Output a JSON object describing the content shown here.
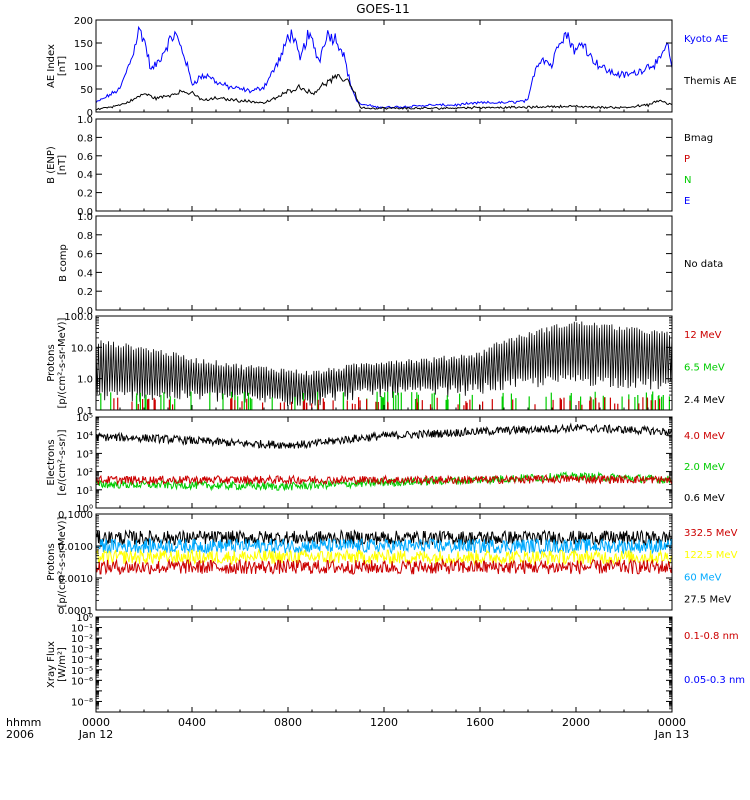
{
  "title": "GOES-11",
  "bottom_labels": {
    "hhmm": "hhmm",
    "year": "2006"
  },
  "x_axis": {
    "ticks": [
      "0000",
      "0400",
      "0800",
      "1200",
      "1600",
      "2000",
      "0000"
    ],
    "tick_hours": [
      0,
      4,
      8,
      12,
      16,
      20,
      24
    ],
    "date_labels": [
      {
        "hour": 0,
        "text": "Jan 12"
      },
      {
        "hour": 24,
        "text": "Jan 13"
      }
    ],
    "range_hours": [
      0,
      24
    ]
  },
  "chart_data": [
    {
      "type": "line",
      "id": "ae",
      "ylabel": [
        "AE Index",
        "[nT]"
      ],
      "scale": "linear",
      "ylim": [
        0,
        200
      ],
      "yticks": [
        0,
        50,
        100,
        150,
        200
      ],
      "ytick_labels": [
        "0",
        "50",
        "100",
        "150",
        "200"
      ],
      "legend": [
        {
          "text": "Kyoto AE",
          "color": "#0000ff"
        },
        {
          "text": "Themis AE",
          "color": "#000000"
        }
      ],
      "series": [
        {
          "name": "Kyoto AE",
          "color": "#0000ff",
          "x": [
            0,
            0.5,
            1,
            1.5,
            1.8,
            2,
            2.3,
            2.6,
            3,
            3.3,
            3.7,
            4,
            4.3,
            4.7,
            5,
            5.5,
            6,
            6.5,
            7,
            7.5,
            7.8,
            8,
            8.2,
            8.5,
            8.8,
            9,
            9.3,
            9.6,
            10,
            10.3,
            10.6,
            10.9,
            11.2,
            11.6,
            12,
            13,
            14,
            15,
            16,
            17,
            18,
            18.3,
            18.6,
            19,
            19.3,
            19.6,
            20,
            20.3,
            20.6,
            21,
            21.5,
            22,
            22.5,
            23,
            23.5,
            23.8,
            24
          ],
          "y": [
            20,
            35,
            50,
            120,
            180,
            160,
            90,
            110,
            150,
            170,
            120,
            60,
            75,
            80,
            65,
            55,
            50,
            45,
            55,
            100,
            130,
            165,
            170,
            110,
            165,
            155,
            110,
            170,
            160,
            130,
            60,
            20,
            15,
            12,
            10,
            12,
            15,
            15,
            20,
            20,
            25,
            95,
            120,
            100,
            160,
            170,
            130,
            155,
            120,
            100,
            85,
            80,
            85,
            100,
            110,
            150,
            90
          ]
        },
        {
          "name": "Themis AE",
          "color": "#000000",
          "x": [
            0,
            1,
            1.5,
            2,
            2.5,
            3,
            3.5,
            4,
            4.5,
            5,
            6,
            7,
            7.5,
            8,
            8.5,
            9,
            9.5,
            10,
            10.5,
            10.8,
            11,
            11.5,
            12,
            14,
            16,
            18,
            19,
            20,
            21,
            22,
            23,
            23.5,
            24
          ],
          "y": [
            5,
            15,
            25,
            40,
            30,
            35,
            45,
            40,
            25,
            30,
            25,
            20,
            30,
            45,
            55,
            40,
            60,
            75,
            70,
            40,
            10,
            8,
            8,
            8,
            10,
            10,
            12,
            12,
            10,
            10,
            15,
            25,
            15
          ]
        }
      ]
    },
    {
      "type": "line",
      "id": "bfield",
      "ylabel": [
        "B (ENP)",
        "[nT]"
      ],
      "scale": "linear",
      "ylim": [
        0,
        1
      ],
      "yticks": [
        0,
        0.2,
        0.4,
        0.6,
        0.8,
        1.0
      ],
      "ytick_labels": [
        "0.0",
        "0.2",
        "0.4",
        "0.6",
        "0.8",
        "1.0"
      ],
      "legend": [
        {
          "text": "Bmag",
          "color": "#000000"
        },
        {
          "text": "P",
          "color": "#cc0000"
        },
        {
          "text": "N",
          "color": "#00cc00"
        },
        {
          "text": "E",
          "color": "#0000ff"
        }
      ],
      "series": []
    },
    {
      "type": "line",
      "id": "bcomp",
      "ylabel": [
        "B comp"
      ],
      "scale": "linear",
      "ylim": [
        0,
        1
      ],
      "yticks": [
        0,
        0.2,
        0.4,
        0.6,
        0.8,
        1.0
      ],
      "ytick_labels": [
        "0.0",
        "0.2",
        "0.4",
        "0.6",
        "0.8",
        "1.0"
      ],
      "legend": [
        {
          "text": "No data",
          "color": "#000000"
        }
      ],
      "series": []
    },
    {
      "type": "line",
      "id": "protons_low",
      "ylabel": [
        "Protons",
        "[p/(cm²-s-sr-MeV)]"
      ],
      "scale": "log",
      "ylim": [
        0.1,
        100
      ],
      "yticks": [
        0.1,
        1,
        10,
        100
      ],
      "ytick_labels": [
        "0.1",
        "1.0",
        "10.0",
        "100.0"
      ],
      "legend": [
        {
          "text": "12 MeV",
          "color": "#cc0000"
        },
        {
          "text": "6.5 MeV",
          "color": "#00cc00"
        },
        {
          "text": "2.4 MeV",
          "color": "#000000"
        }
      ],
      "series": [
        {
          "name": "2.4 MeV",
          "color": "#000000",
          "style": "spiky",
          "x": [
            0,
            2,
            4,
            6,
            8,
            9,
            10,
            12,
            14,
            16,
            18,
            20,
            22,
            24
          ],
          "y": [
            15,
            9,
            4,
            2.5,
            1.8,
            1.5,
            2,
            3.5,
            4,
            6,
            25,
            60,
            40,
            25
          ],
          "ymin": [
            0.3,
            0.3,
            0.3,
            0.25,
            0.2,
            0.2,
            0.3,
            0.4,
            0.4,
            0.5,
            0.8,
            1,
            0.8,
            0.6
          ]
        },
        {
          "name": "6.5 MeV",
          "color": "#00cc00",
          "style": "sparse",
          "x": [
            0,
            24
          ],
          "y": [
            0.15,
            0.15
          ],
          "ymax": [
            0.3,
            0.3
          ]
        },
        {
          "name": "12 MeV",
          "color": "#cc0000",
          "style": "sparse",
          "x": [
            0,
            24
          ],
          "y": [
            0.12,
            0.12
          ],
          "ymax": [
            0.2,
            0.2
          ]
        }
      ]
    },
    {
      "type": "line",
      "id": "electrons",
      "ylabel": [
        "Electrons",
        "[e/(cm²-s-sr)]"
      ],
      "scale": "log",
      "ylim": [
        1,
        100000
      ],
      "yticks": [
        1,
        10,
        100,
        1000,
        10000,
        100000
      ],
      "ytick_labels": [
        "10⁰",
        "10¹",
        "10²",
        "10³",
        "10⁴",
        "10⁵"
      ],
      "legend": [
        {
          "text": "4.0 MeV",
          "color": "#cc0000"
        },
        {
          "text": "2.0 MeV",
          "color": "#00cc00"
        },
        {
          "text": "0.6 MeV",
          "color": "#000000"
        }
      ],
      "series": [
        {
          "name": "0.6 MeV",
          "color": "#000000",
          "style": "noisy",
          "x": [
            0,
            2,
            4,
            6,
            8,
            9,
            10,
            12,
            14,
            16,
            18,
            20,
            22,
            24
          ],
          "y": [
            8000,
            7000,
            5000,
            3500,
            3000,
            3200,
            5000,
            9000,
            12000,
            16000,
            20000,
            25000,
            20000,
            15000
          ]
        },
        {
          "name": "2.0 MeV",
          "color": "#00cc00",
          "style": "noisy",
          "x": [
            0,
            4,
            8,
            12,
            16,
            20,
            24
          ],
          "y": [
            20,
            18,
            15,
            25,
            35,
            55,
            35
          ]
        },
        {
          "name": "4.0 MeV",
          "color": "#cc0000",
          "style": "noisy",
          "x": [
            0,
            4,
            8,
            12,
            16,
            20,
            24
          ],
          "y": [
            35,
            35,
            35,
            35,
            35,
            40,
            35
          ]
        }
      ]
    },
    {
      "type": "line",
      "id": "protons_high",
      "ylabel": [
        "Protons",
        "[p/(cm²-s-sr-MeV)]"
      ],
      "scale": "log",
      "ylim": [
        0.0001,
        0.1
      ],
      "yticks": [
        0.0001,
        0.001,
        0.01,
        0.1
      ],
      "ytick_labels": [
        "0.0001",
        "0.0010",
        "0.0100",
        "0.1000"
      ],
      "legend": [
        {
          "text": "332.5 MeV",
          "color": "#cc0000"
        },
        {
          "text": "122.5 MeV",
          "color": "#ffff00"
        },
        {
          "text": "60 MeV",
          "color": "#00aaff"
        },
        {
          "text": "27.5 MeV",
          "color": "#000000"
        }
      ],
      "series": [
        {
          "name": "27.5 MeV",
          "color": "#000000",
          "style": "noisy",
          "x": [
            0,
            24
          ],
          "y": [
            0.018,
            0.018
          ]
        },
        {
          "name": "60 MeV",
          "color": "#00aaff",
          "style": "noisy",
          "x": [
            0,
            24
          ],
          "y": [
            0.01,
            0.01
          ]
        },
        {
          "name": "122.5 MeV",
          "color": "#ffff00",
          "style": "noisy",
          "x": [
            0,
            24
          ],
          "y": [
            0.0045,
            0.0045
          ]
        },
        {
          "name": "332.5 MeV",
          "color": "#cc0000",
          "style": "noisy",
          "x": [
            0,
            24
          ],
          "y": [
            0.0022,
            0.0022
          ]
        }
      ]
    },
    {
      "type": "line",
      "id": "xray",
      "ylabel": [
        "Xray Flux",
        "[W/m²]"
      ],
      "scale": "log",
      "ylim": [
        1e-09,
        1
      ],
      "yticks": [
        1e-08,
        1e-07,
        1e-06,
        1e-05,
        0.0001,
        0.001,
        0.01,
        0.1,
        1
      ],
      "ytick_labels": [
        "10⁻⁸",
        "",
        "10⁻⁶",
        "10⁻⁵",
        "10⁻⁴",
        "10⁻³",
        "10⁻²",
        "10⁻¹",
        "10⁰"
      ],
      "legend": [
        {
          "text": "0.1-0.8 nm",
          "color": "#cc0000"
        },
        {
          "text": "0.05-0.3 nm",
          "color": "#0000ff"
        }
      ],
      "series": []
    }
  ]
}
